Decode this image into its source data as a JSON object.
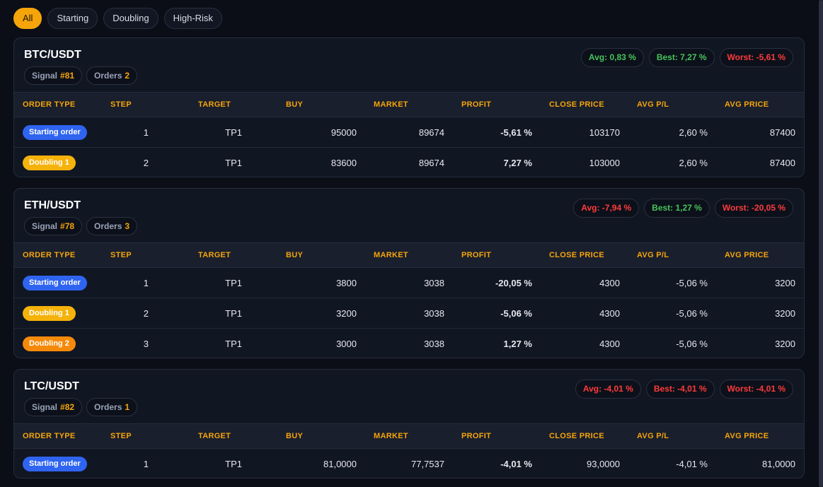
{
  "filters": [
    {
      "label": "All",
      "active": true
    },
    {
      "label": "Starting",
      "active": false
    },
    {
      "label": "Doubling",
      "active": false
    },
    {
      "label": "High-Risk",
      "active": false
    }
  ],
  "columns": {
    "order_type": "ORDER TYPE",
    "step": "STEP",
    "target": "TARGET",
    "buy": "BUY",
    "market": "MARKET",
    "profit": "PROFIT",
    "close_price": "CLOSE PRICE",
    "avg_pl": "AVG P/L",
    "avg_price": "AVG PRICE"
  },
  "colors": {
    "accent": "#f5a50a",
    "positive": "#46c35a",
    "negative": "#ff3b3b",
    "starting_badge": "#2f64f0",
    "doubling1_badge": "#f5b20a",
    "doubling2_badge": "#f58a0a"
  },
  "cards": [
    {
      "pair": "BTC/USDT",
      "signal_label": "Signal",
      "signal_num": "#81",
      "orders_label": "Orders",
      "orders_num": "2",
      "avg": {
        "text": "Avg: 0,83 %",
        "sign": "pos"
      },
      "best": {
        "text": "Best: 7,27 %",
        "sign": "pos"
      },
      "worst": {
        "text": "Worst: -5,61 %",
        "sign": "neg"
      },
      "rows": [
        {
          "order_type": "Starting order",
          "kind": "start",
          "step": "1",
          "target": "TP1",
          "buy": "95000",
          "market": "89674",
          "profit": "-5,61 %",
          "profit_sign": "neg",
          "close_price": "103170",
          "avg_pl": "2,60 %",
          "avg_pl_sign": "pos",
          "avg_price": "87400"
        },
        {
          "order_type": "Doubling 1",
          "kind": "d1",
          "step": "2",
          "target": "TP1",
          "buy": "83600",
          "market": "89674",
          "profit": "7,27 %",
          "profit_sign": "pos",
          "close_price": "103000",
          "avg_pl": "2,60 %",
          "avg_pl_sign": "pos",
          "avg_price": "87400"
        }
      ]
    },
    {
      "pair": "ETH/USDT",
      "signal_label": "Signal",
      "signal_num": "#78",
      "orders_label": "Orders",
      "orders_num": "3",
      "avg": {
        "text": "Avg: -7,94 %",
        "sign": "neg"
      },
      "best": {
        "text": "Best: 1,27 %",
        "sign": "pos"
      },
      "worst": {
        "text": "Worst: -20,05 %",
        "sign": "neg"
      },
      "rows": [
        {
          "order_type": "Starting order",
          "kind": "start",
          "step": "1",
          "target": "TP1",
          "buy": "3800",
          "market": "3038",
          "profit": "-20,05 %",
          "profit_sign": "neg",
          "close_price": "4300",
          "avg_pl": "-5,06 %",
          "avg_pl_sign": "neg",
          "avg_price": "3200"
        },
        {
          "order_type": "Doubling 1",
          "kind": "d1",
          "step": "2",
          "target": "TP1",
          "buy": "3200",
          "market": "3038",
          "profit": "-5,06 %",
          "profit_sign": "neg",
          "close_price": "4300",
          "avg_pl": "-5,06 %",
          "avg_pl_sign": "neg",
          "avg_price": "3200"
        },
        {
          "order_type": "Doubling 2",
          "kind": "d2",
          "step": "3",
          "target": "TP1",
          "buy": "3000",
          "market": "3038",
          "profit": "1,27 %",
          "profit_sign": "pos",
          "close_price": "4300",
          "avg_pl": "-5,06 %",
          "avg_pl_sign": "neg",
          "avg_price": "3200"
        }
      ]
    },
    {
      "pair": "LTC/USDT",
      "signal_label": "Signal",
      "signal_num": "#82",
      "orders_label": "Orders",
      "orders_num": "1",
      "avg": {
        "text": "Avg: -4,01 %",
        "sign": "neg"
      },
      "best": {
        "text": "Best: -4,01 %",
        "sign": "neg"
      },
      "worst": {
        "text": "Worst: -4,01 %",
        "sign": "neg"
      },
      "rows": [
        {
          "order_type": "Starting order",
          "kind": "start",
          "step": "1",
          "target": "TP1",
          "buy": "81,0000",
          "market": "77,7537",
          "profit": "-4,01 %",
          "profit_sign": "neg",
          "close_price": "93,0000",
          "avg_pl": "-4,01 %",
          "avg_pl_sign": "neg",
          "avg_price": "81,0000"
        }
      ]
    }
  ]
}
